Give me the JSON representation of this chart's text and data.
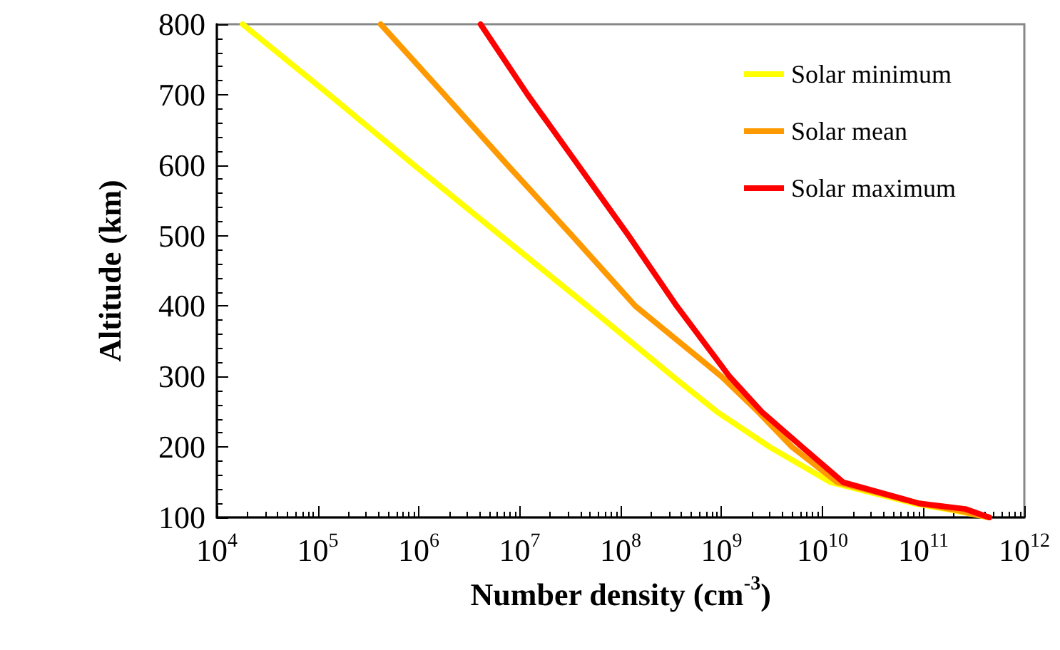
{
  "chart_data": {
    "type": "line",
    "xlabel": "Number density (cm$^{-3}$)",
    "ylabel": "Altitude (km)",
    "log": "x",
    "xlim": [
      10000,
      1000000000000
    ],
    "xticks": [
      {
        "value": 10000,
        "label": "10$^{4}$"
      },
      {
        "value": 100000,
        "label": "10$^{5}$"
      },
      {
        "value": 1000000,
        "label": "10$^{6}$"
      },
      {
        "value": 10000000,
        "label": "10$^{7}$"
      },
      {
        "value": 100000000,
        "label": "10$^{8}$"
      },
      {
        "value": 1000000000,
        "label": "10$^{9}$"
      },
      {
        "value": 10000000000,
        "label": "10$^{10}$"
      },
      {
        "value": 100000000000,
        "label": "10$^{11}$"
      },
      {
        "value": 1000000000000,
        "label": "10$^{12}$"
      }
    ],
    "ylim": [
      100,
      800
    ],
    "yticks": [
      100,
      200,
      300,
      400,
      500,
      600,
      700,
      800
    ],
    "grid": false,
    "legend": "top right",
    "marker": "none",
    "line_style": "solid",
    "series": [
      {
        "name": "Solar minimum",
        "color": "#ffff00",
        "x": [
          18000,
          130000,
          900000,
          6500000,
          47000000,
          330000000,
          900000000,
          3000000000,
          12000000000,
          80000000000,
          200000000000,
          450000000000
        ],
        "values": [
          800,
          700,
          600,
          500,
          400,
          300,
          250,
          200,
          150,
          120,
          110,
          100
        ]
      },
      {
        "name": "Solar mean",
        "color": "#ff9900",
        "x": [
          420000,
          1800000,
          7600000,
          33000000,
          140000000,
          1000000000,
          2300000000,
          5000000000,
          14000000000,
          90000000000,
          220000000000,
          450000000000
        ],
        "values": [
          800,
          700,
          600,
          500,
          400,
          300,
          250,
          200,
          150,
          120,
          110,
          100
        ]
      },
      {
        "name": "Solar maximum",
        "color": "#ff0000",
        "x": [
          4100000,
          12000000,
          38000000,
          120000000,
          360000000,
          1200000000,
          2500000000,
          6300000000,
          16000000000,
          90000000000,
          260000000000,
          450000000000
        ],
        "values": [
          800,
          700,
          600,
          500,
          400,
          300,
          250,
          200,
          150,
          120,
          112,
          100
        ]
      }
    ]
  }
}
